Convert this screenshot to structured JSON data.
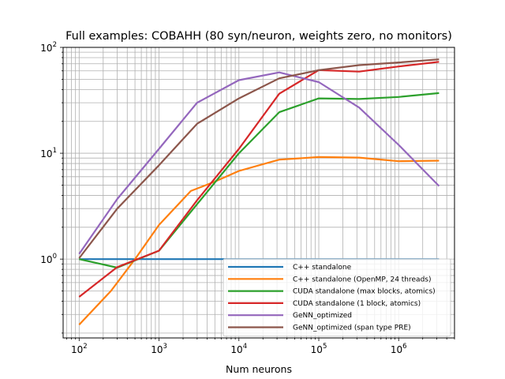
{
  "chart_data": {
    "type": "line",
    "title": "Full examples: COBAHH (80 syn/neuron, weights zero, no monitors)",
    "xlabel": "Num neurons",
    "ylabel": "",
    "xscale": "log",
    "yscale": "log",
    "xlim": [
      63,
      5000000
    ],
    "ylim": [
      0.18,
      100
    ],
    "grid": true,
    "legend_position": "lower-right",
    "x_ticks": [
      {
        "value": 100,
        "base": "10",
        "exp": "2"
      },
      {
        "value": 1000,
        "base": "10",
        "exp": "3"
      },
      {
        "value": 10000,
        "base": "10",
        "exp": "4"
      },
      {
        "value": 100000,
        "base": "10",
        "exp": "5"
      },
      {
        "value": 1000000,
        "base": "10",
        "exp": "6"
      }
    ],
    "y_ticks": [
      {
        "value": 1,
        "base": "10",
        "exp": "0"
      },
      {
        "value": 10,
        "base": "10",
        "exp": "1"
      },
      {
        "value": 100,
        "base": "10",
        "exp": "2"
      }
    ],
    "series": [
      {
        "name": "C++ standalone",
        "color": "#1f77b4",
        "x": [
          100,
          250,
          1000,
          3000,
          10000,
          32000,
          100000,
          320000,
          1000000,
          3200000
        ],
        "y": [
          1,
          1,
          1,
          1,
          1,
          1,
          1,
          1,
          1,
          1
        ]
      },
      {
        "name": "C++ standalone (OpenMP, 24 threads)",
        "color": "#ff7f0e",
        "x": [
          100,
          250,
          500,
          1000,
          2500,
          5000,
          10000,
          32000,
          100000,
          320000,
          1000000,
          3200000
        ],
        "y": [
          0.24,
          0.5,
          1.0,
          2.1,
          4.4,
          5.4,
          6.8,
          8.7,
          9.2,
          9.1,
          8.4,
          8.5
        ]
      },
      {
        "name": "CUDA standalone (max blocks, atomics)",
        "color": "#2ca02c",
        "x": [
          100,
          300,
          1000,
          3000,
          10000,
          32000,
          100000,
          320000,
          1000000,
          3200000
        ],
        "y": [
          1.0,
          0.83,
          1.2,
          3.3,
          10,
          24.4,
          33,
          32.5,
          34,
          37
        ]
      },
      {
        "name": "CUDA standalone (1 block, atomics)",
        "color": "#d62728",
        "x": [
          100,
          300,
          1000,
          3000,
          10000,
          32000,
          100000,
          320000,
          1000000,
          3200000
        ],
        "y": [
          0.44,
          0.84,
          1.2,
          3.6,
          11,
          36.5,
          61,
          59,
          66,
          73
        ]
      },
      {
        "name": "GeNN_optimized",
        "color": "#9467bd",
        "x": [
          100,
          300,
          1000,
          3000,
          10000,
          32000,
          100000,
          320000,
          1000000,
          3200000
        ],
        "y": [
          1.12,
          3.7,
          11,
          30,
          49,
          58,
          47,
          27,
          12,
          4.9
        ]
      },
      {
        "name": "GeNN_optimized (span type PRE)",
        "color": "#8c564b",
        "x": [
          100,
          300,
          1000,
          3000,
          10000,
          32000,
          100000,
          320000,
          1000000,
          3200000
        ],
        "y": [
          1.02,
          3.0,
          7.7,
          19,
          33,
          51,
          61,
          68,
          72,
          77
        ]
      }
    ]
  }
}
